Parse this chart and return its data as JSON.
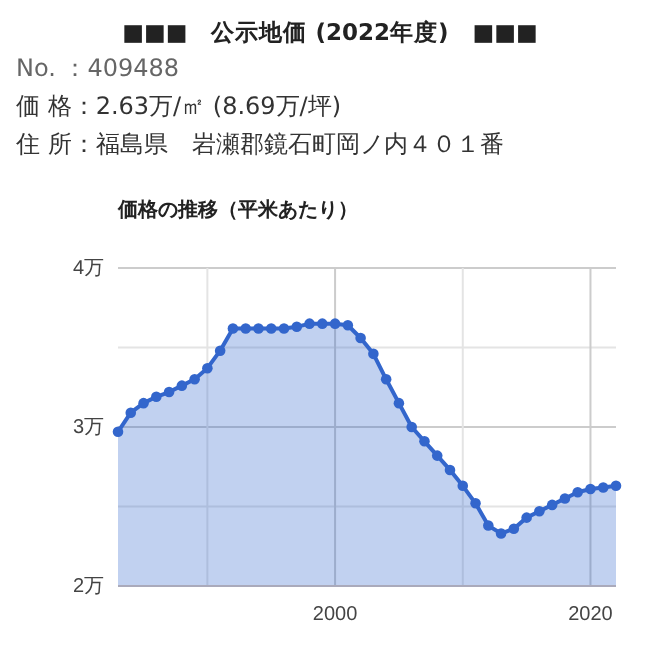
{
  "chart_data": {
    "type": "area",
    "title": "■■■　公示地価 (2022年度)　■■■",
    "subtitle": "価格の推移（平米あたり）",
    "annotations": [
      "No. ：409488",
      "価 格：2.63万/㎡ (8.69万/坪)",
      "住 所：福島県　岩瀬郡鏡石町岡ノ内４０１番"
    ],
    "x": [
      1983,
      1984,
      1985,
      1986,
      1987,
      1988,
      1989,
      1990,
      1991,
      1992,
      1993,
      1994,
      1995,
      1996,
      1997,
      1998,
      1999,
      2000,
      2001,
      2002,
      2003,
      2004,
      2005,
      2006,
      2007,
      2008,
      2009,
      2010,
      2011,
      2012,
      2013,
      2014,
      2015,
      2016,
      2017,
      2018,
      2019,
      2020,
      2021,
      2022
    ],
    "series": [
      {
        "color": "#3366cc",
        "values": [
          2.97,
          3.09,
          3.15,
          3.19,
          3.22,
          3.26,
          3.3,
          3.37,
          3.48,
          3.62,
          3.62,
          3.62,
          3.62,
          3.62,
          3.63,
          3.65,
          3.65,
          3.65,
          3.64,
          3.56,
          3.46,
          3.3,
          3.15,
          3.0,
          2.91,
          2.82,
          2.73,
          2.63,
          2.52,
          2.38,
          2.33,
          2.36,
          2.43,
          2.47,
          2.51,
          2.55,
          2.59,
          2.61,
          2.62,
          2.63
        ]
      }
    ],
    "xlim": [
      1983,
      2022
    ],
    "xticks": [
      {
        "value": 1990,
        "label": null
      },
      2000,
      {
        "value": 2010,
        "label": null
      },
      2020
    ],
    "ylim": [
      2,
      4
    ],
    "yticks": [
      {
        "value": 2,
        "label": "2万"
      },
      {
        "value": 2.5,
        "label": null
      },
      {
        "value": 3,
        "label": "3万"
      },
      {
        "value": 3.5,
        "label": null
      },
      {
        "value": 4,
        "label": "4万"
      }
    ],
    "grid": true,
    "marker": "circle",
    "line_style": "solid"
  }
}
